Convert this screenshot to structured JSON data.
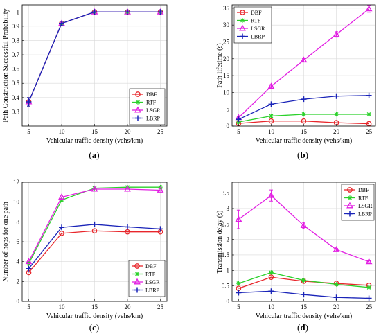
{
  "chart_data": [
    {
      "id": "a",
      "type": "line",
      "panel_label": "(a)",
      "xlabel": "Vehicular traffic density (vehs/km)",
      "ylabel": "Path Construction Successful Probability",
      "x": [
        5,
        10,
        15,
        20,
        25
      ],
      "xlim": [
        4,
        26
      ],
      "ylim": [
        0.2,
        1.05
      ],
      "xticks": [
        5,
        10,
        15,
        20,
        25
      ],
      "yticks": [
        0.3,
        0.4,
        0.5,
        0.6,
        0.7,
        0.8,
        0.9,
        1
      ],
      "grid": true,
      "legend_position": "bottom-right",
      "series": [
        {
          "name": "DBF",
          "color": "#e8262b",
          "marker": "circle",
          "values": [
            0.37,
            0.92,
            1.0,
            1.0,
            1.0
          ],
          "errors": [
            0.03,
            0.015,
            0,
            0,
            0
          ]
        },
        {
          "name": "RTF",
          "color": "#2bd12b",
          "marker": "star",
          "values": [
            0.37,
            0.92,
            1.0,
            1.0,
            1.0
          ],
          "errors": [
            0.03,
            0.015,
            0,
            0,
            0
          ]
        },
        {
          "name": "LSGR",
          "color": "#e21fe2",
          "marker": "triangle",
          "values": [
            0.37,
            0.92,
            1.0,
            1.0,
            1.0
          ],
          "errors": [
            0.03,
            0.015,
            0,
            0,
            0
          ]
        },
        {
          "name": "LBRP",
          "color": "#1a24b8",
          "marker": "plus",
          "values": [
            0.37,
            0.92,
            1.0,
            1.0,
            1.0
          ],
          "errors": [
            0.03,
            0.015,
            0,
            0,
            0
          ]
        }
      ]
    },
    {
      "id": "b",
      "type": "line",
      "panel_label": "(b)",
      "xlabel": "Vehicular traffic density (vehs/km)",
      "ylabel": "Path lifetime (s)",
      "x": [
        5,
        10,
        15,
        20,
        25
      ],
      "xlim": [
        4,
        26
      ],
      "ylim": [
        0,
        36
      ],
      "xticks": [
        5,
        10,
        15,
        20,
        25
      ],
      "yticks": [
        0,
        5,
        10,
        15,
        20,
        25,
        30,
        35
      ],
      "grid": true,
      "legend_position": "top-left",
      "series": [
        {
          "name": "DBF",
          "color": "#e8262b",
          "marker": "circle",
          "values": [
            0.8,
            1.5,
            1.5,
            1.0,
            0.7
          ],
          "errors": [
            0,
            0,
            0,
            0,
            0
          ]
        },
        {
          "name": "RTF",
          "color": "#2bd12b",
          "marker": "star",
          "values": [
            1.2,
            3.0,
            3.5,
            3.5,
            3.5
          ],
          "errors": [
            0,
            0,
            0,
            0,
            0
          ]
        },
        {
          "name": "LSGR",
          "color": "#e21fe2",
          "marker": "triangle",
          "values": [
            2.5,
            11.8,
            19.6,
            27.2,
            34.8
          ],
          "errors": [
            0.3,
            0.5,
            0.5,
            0.8,
            1.0
          ]
        },
        {
          "name": "LBRP",
          "color": "#1a24b8",
          "marker": "plus",
          "values": [
            2.0,
            6.5,
            8.0,
            8.9,
            9.1
          ],
          "errors": [
            0,
            0,
            0,
            0,
            0
          ]
        }
      ]
    },
    {
      "id": "c",
      "type": "line",
      "panel_label": "(c)",
      "xlabel": "Vehicular traffic density (vehs/km)",
      "ylabel": "Number of hops for one path",
      "x": [
        5,
        10,
        15,
        20,
        25
      ],
      "xlim": [
        4,
        26
      ],
      "ylim": [
        0,
        12
      ],
      "xticks": [
        5,
        10,
        15,
        20,
        25
      ],
      "yticks": [
        0,
        2,
        4,
        6,
        8,
        10,
        12
      ],
      "grid": true,
      "legend_position": "bottom-right",
      "series": [
        {
          "name": "DBF",
          "color": "#e8262b",
          "marker": "circle",
          "values": [
            2.9,
            6.85,
            7.1,
            7.0,
            7.0
          ],
          "errors": [
            0,
            0,
            0,
            0,
            0
          ]
        },
        {
          "name": "RTF",
          "color": "#2bd12b",
          "marker": "star",
          "values": [
            3.8,
            10.2,
            11.4,
            11.5,
            11.5
          ],
          "errors": [
            0,
            0,
            0,
            0,
            0
          ]
        },
        {
          "name": "LSGR",
          "color": "#e21fe2",
          "marker": "triangle",
          "values": [
            4.0,
            10.5,
            11.3,
            11.3,
            11.2
          ],
          "errors": [
            0,
            0,
            0,
            0,
            0
          ]
        },
        {
          "name": "LBRP",
          "color": "#1a24b8",
          "marker": "plus",
          "values": [
            3.3,
            7.45,
            7.75,
            7.5,
            7.3
          ],
          "errors": [
            0,
            0,
            0,
            0,
            0
          ]
        }
      ]
    },
    {
      "id": "d",
      "type": "line",
      "panel_label": "(d)",
      "xlabel": "Vehicular traffic density (vehs/km)",
      "ylabel": "Transmission delay (s)",
      "x": [
        5,
        10,
        15,
        20,
        25
      ],
      "xlim": [
        4,
        26
      ],
      "ylim": [
        0,
        3.85
      ],
      "xticks": [
        5,
        10,
        15,
        20,
        25
      ],
      "yticks": [
        0,
        0.5,
        1,
        1.5,
        2,
        2.5,
        3,
        3.5
      ],
      "grid": true,
      "legend_position": "top-right",
      "series": [
        {
          "name": "DBF",
          "color": "#e8262b",
          "marker": "circle",
          "values": [
            0.42,
            0.78,
            0.65,
            0.58,
            0.52
          ],
          "errors": [
            0,
            0,
            0,
            0,
            0
          ]
        },
        {
          "name": "RTF",
          "color": "#2bd12b",
          "marker": "star",
          "values": [
            0.58,
            0.93,
            0.68,
            0.55,
            0.45
          ],
          "errors": [
            0,
            0,
            0,
            0,
            0
          ]
        },
        {
          "name": "LSGR",
          "color": "#e21fe2",
          "marker": "triangle",
          "values": [
            2.65,
            3.42,
            2.45,
            1.67,
            1.28
          ],
          "errors": [
            0.3,
            0.18,
            0.1,
            0.04,
            0.03
          ]
        },
        {
          "name": "LBRP",
          "color": "#1a24b8",
          "marker": "plus",
          "values": [
            0.28,
            0.33,
            0.22,
            0.13,
            0.1
          ],
          "errors": [
            0,
            0,
            0,
            0,
            0
          ]
        }
      ]
    }
  ]
}
